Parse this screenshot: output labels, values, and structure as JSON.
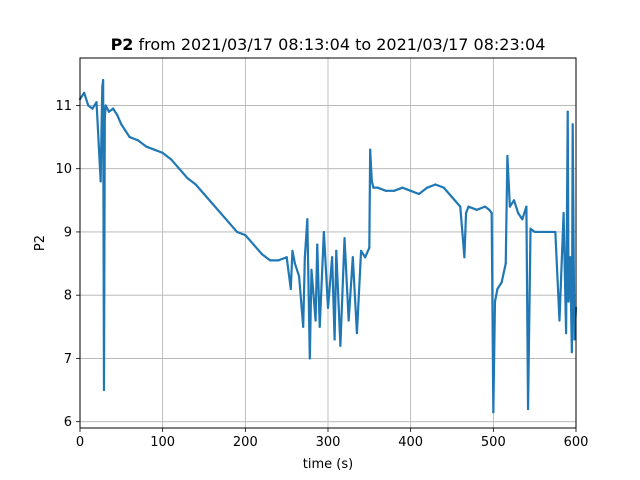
{
  "chart_data": {
    "type": "line",
    "title_bold": "P2",
    "title_rest": " from 2021/03/17 08:13:04 to 2021/03/17 08:23:04",
    "xlabel": "time (s)",
    "ylabel": "P2",
    "xlim": [
      0,
      600
    ],
    "ylim": [
      5.9,
      11.75
    ],
    "xticks": [
      0,
      100,
      200,
      300,
      400,
      500,
      600
    ],
    "yticks": [
      6,
      7,
      8,
      9,
      10,
      11
    ],
    "grid": true,
    "colors": {
      "series": "#1f77b4",
      "grid": "#b0b0b0",
      "axes": "#000000"
    },
    "series": [
      {
        "x": [
          0,
          5,
          10,
          15,
          20,
          25,
          26,
          27,
          28,
          29,
          30,
          31,
          35,
          40,
          45,
          50,
          55,
          60,
          70,
          80,
          90,
          100,
          110,
          120,
          130,
          140,
          150,
          160,
          170,
          180,
          190,
          200,
          210,
          220,
          230,
          240,
          250,
          255,
          257,
          260,
          265,
          270,
          272,
          275,
          278,
          280,
          285,
          287,
          290,
          295,
          300,
          305,
          308,
          310,
          315,
          320,
          325,
          330,
          335,
          340,
          345,
          350,
          351,
          353,
          355,
          360,
          370,
          380,
          390,
          400,
          410,
          420,
          430,
          440,
          450,
          460,
          465,
          467,
          470,
          480,
          490,
          495,
          498,
          500,
          502,
          505,
          510,
          515,
          517,
          520,
          525,
          530,
          535,
          540,
          542,
          545,
          550,
          560,
          575,
          580,
          585,
          588,
          590,
          591,
          593,
          595,
          596,
          598,
          600
        ],
        "y": [
          11.1,
          11.2,
          11.0,
          10.95,
          11.05,
          9.8,
          10.6,
          11.3,
          11.4,
          6.5,
          10.8,
          11.0,
          10.9,
          10.95,
          10.85,
          10.7,
          10.6,
          10.5,
          10.45,
          10.35,
          10.3,
          10.25,
          10.15,
          10.0,
          9.85,
          9.75,
          9.6,
          9.45,
          9.3,
          9.15,
          9.0,
          8.95,
          8.8,
          8.65,
          8.55,
          8.55,
          8.6,
          8.1,
          8.7,
          8.5,
          8.3,
          7.5,
          8.6,
          9.2,
          7.0,
          8.4,
          7.6,
          8.8,
          7.5,
          9.0,
          7.8,
          8.6,
          7.3,
          8.7,
          7.2,
          8.9,
          7.6,
          8.6,
          7.4,
          8.7,
          8.6,
          8.75,
          10.3,
          9.8,
          9.7,
          9.7,
          9.65,
          9.65,
          9.7,
          9.65,
          9.6,
          9.7,
          9.75,
          9.7,
          9.55,
          9.4,
          8.6,
          9.3,
          9.4,
          9.35,
          9.4,
          9.35,
          9.3,
          6.15,
          7.9,
          8.1,
          8.2,
          8.5,
          10.2,
          9.4,
          9.5,
          9.3,
          9.2,
          9.4,
          6.2,
          9.05,
          9.0,
          9.0,
          9.0,
          7.6,
          9.3,
          7.4,
          10.9,
          7.9,
          8.6,
          7.1,
          10.7,
          7.3,
          7.8
        ]
      }
    ]
  }
}
